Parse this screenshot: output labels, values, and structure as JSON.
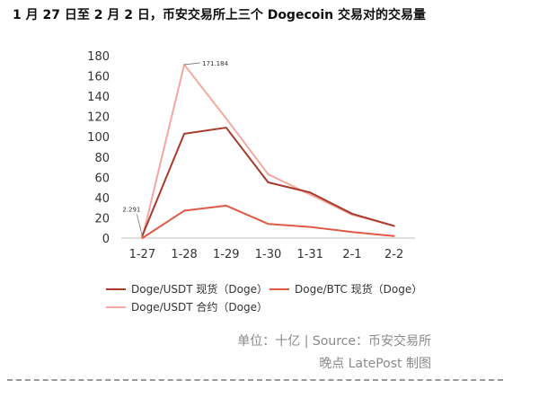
{
  "title": "1 月 27 日至 2 月 2 日，币安交易所上三个 Dogecoin 交易对的交易量",
  "chart_data": {
    "type": "line",
    "categories": [
      "1-27",
      "1-28",
      "1-29",
      "1-30",
      "1-31",
      "2-1",
      "2-2"
    ],
    "series": [
      {
        "name": "Doge/USDT 现货（Doge）",
        "color": "#a83a2c",
        "values": [
          2.291,
          103,
          109,
          55,
          45,
          24,
          12
        ]
      },
      {
        "name": "Doge/BTC 现货（Doge）",
        "color": "#e05a45",
        "values": [
          0,
          27,
          32,
          14,
          11,
          6,
          2
        ]
      },
      {
        "name": "Doge/USDT 合约（Doge）",
        "color": "#f4a8a0",
        "values": [
          0,
          171.184,
          118,
          63,
          43,
          23,
          12
        ]
      }
    ],
    "yticks": [
      0,
      20,
      40,
      60,
      80,
      100,
      120,
      140,
      160,
      180
    ],
    "ylim": [
      0,
      180
    ],
    "grid": false,
    "legend_position": "bottom",
    "annotations": [
      {
        "category": "1-28",
        "value": 171.184,
        "label": "171.184"
      },
      {
        "category": "1-27",
        "value": 2.291,
        "label": "2.291"
      }
    ]
  },
  "source": {
    "line1": "单位：十亿 | Source：币安交易所",
    "line2": "晚点 LatePost 制图"
  }
}
